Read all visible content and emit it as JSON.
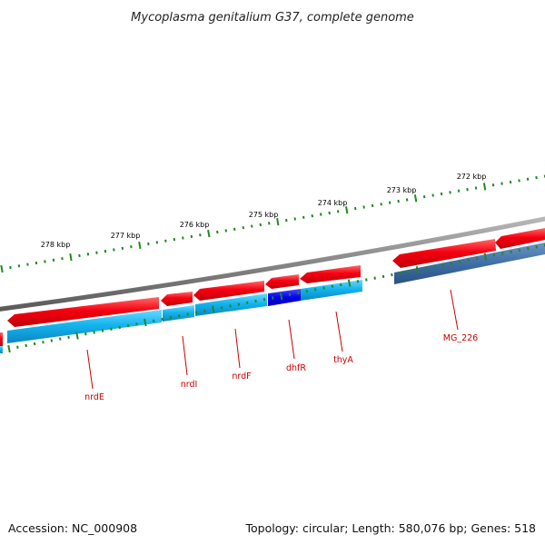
{
  "title": "Mycoplasma genitalium G37, complete genome",
  "footer": {
    "accession": "Accession: NC_000908",
    "summary": "Topology: circular; Length: 580,076 bp; Genes: 518"
  },
  "colors": {
    "forward_gene": "#e8000b",
    "cds_feature": "#18b2ee",
    "selected_feature": "#0000ee",
    "other_feature": "#3f6fa5",
    "backbone": "#8c8c8c",
    "ticks": "#1f8a1f",
    "labels": "#cc0000"
  },
  "scale_labels": [
    "272 kbp",
    "273 kbp",
    "274 kbp",
    "275 kbp",
    "276 kbp",
    "277 kbp",
    "278 kbp"
  ],
  "gene_labels": [
    "MG_226",
    "thyA",
    "dhfR",
    "nrdF",
    "nrdI",
    "nrdE"
  ]
}
